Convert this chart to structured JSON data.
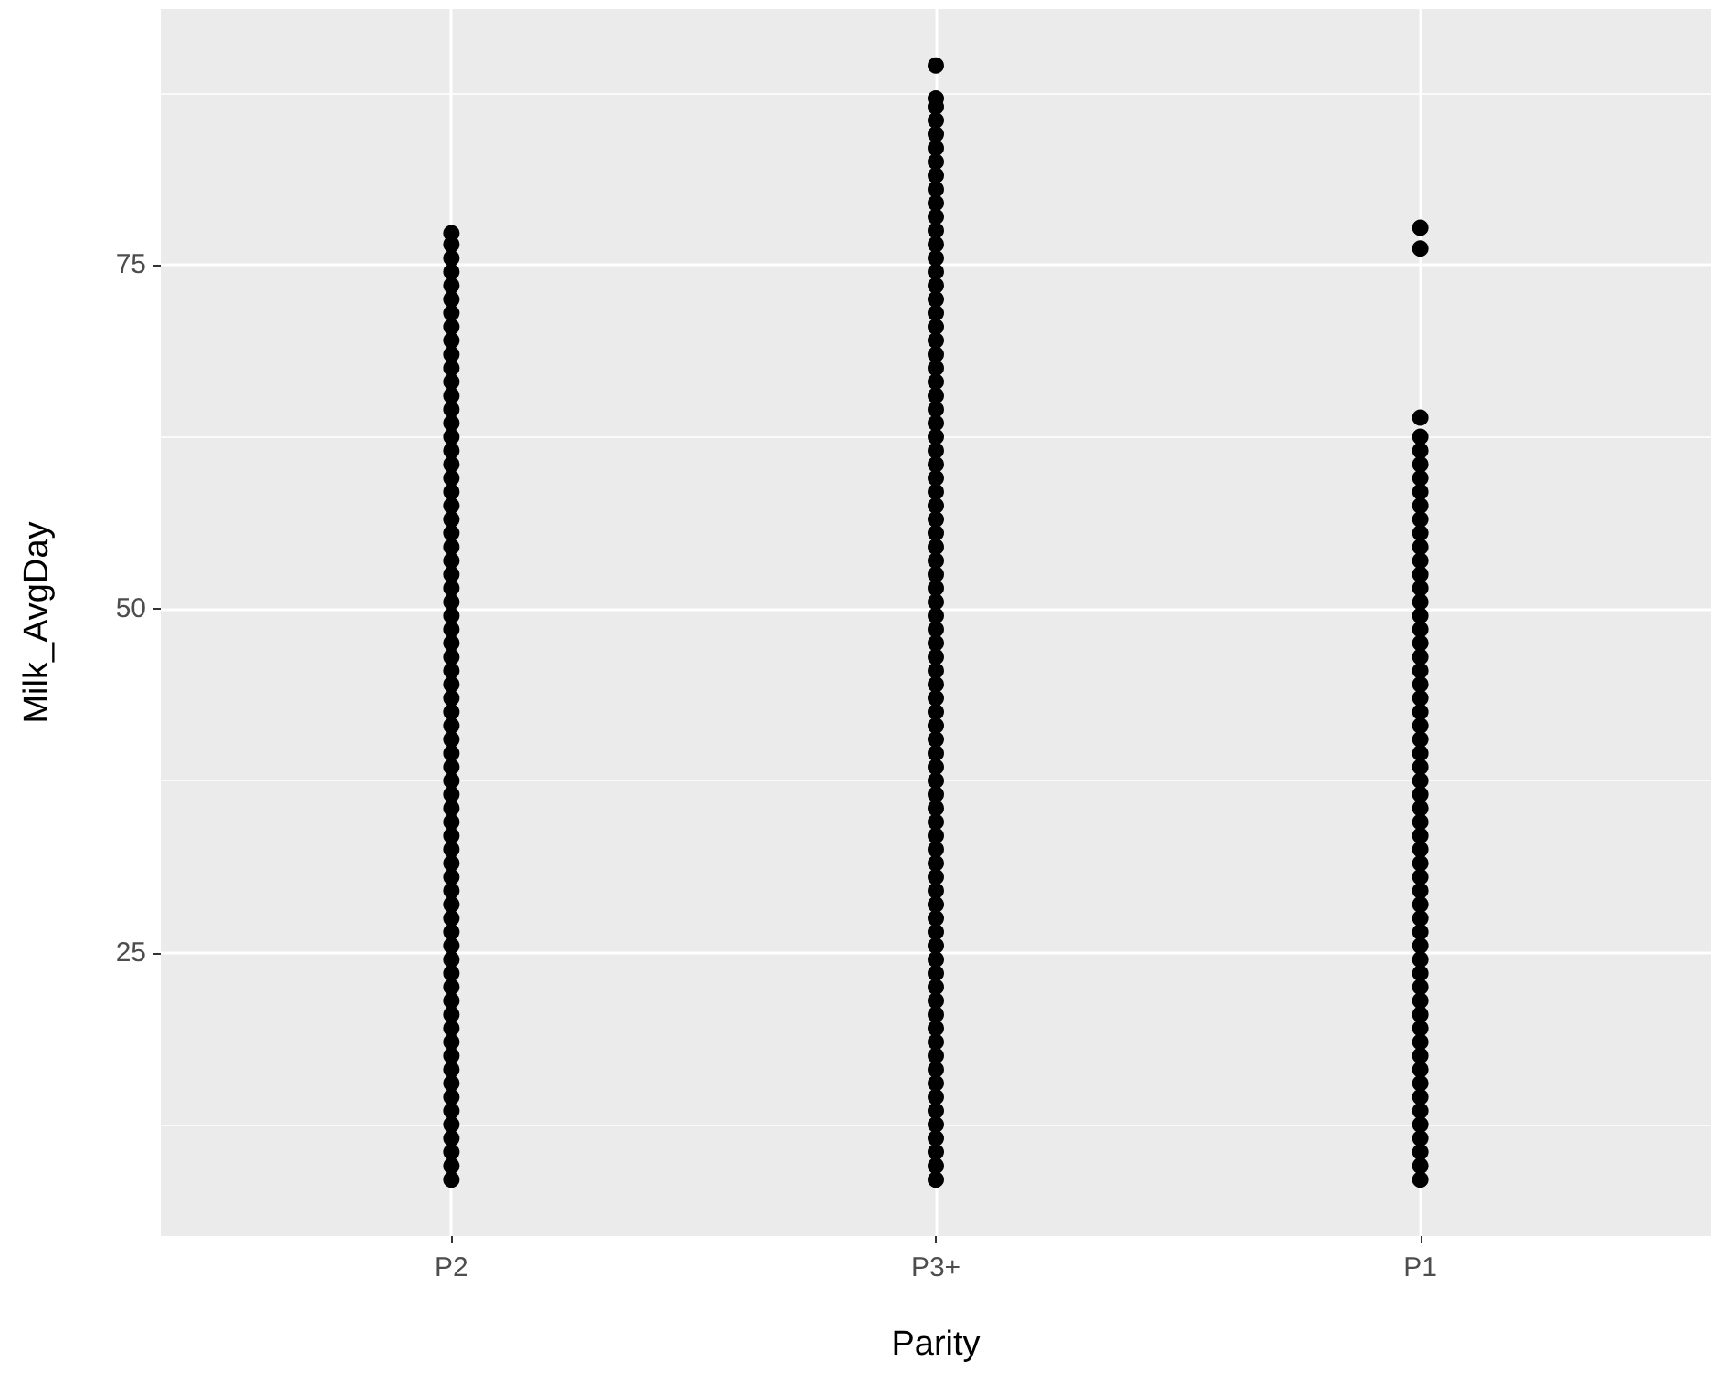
{
  "chart_data": {
    "type": "scatter",
    "xlabel": "Parity",
    "ylabel": "Milk_AvgDay",
    "categories": [
      "P2",
      "P3+",
      "P1"
    ],
    "ylim": [
      4.4,
      93.6
    ],
    "yticks": [
      25,
      50,
      75
    ],
    "grid": true,
    "marker": "circle",
    "series": [
      {
        "color": "#000000",
        "x": [
          "P2",
          "P2",
          "P2",
          "P2",
          "P2",
          "P2",
          "P2",
          "P2",
          "P2",
          "P2",
          "P2",
          "P2",
          "P2",
          "P2",
          "P2",
          "P2",
          "P2",
          "P2",
          "P2",
          "P2",
          "P2",
          "P2",
          "P2",
          "P2",
          "P2",
          "P2",
          "P2",
          "P2",
          "P2",
          "P2",
          "P2",
          "P2",
          "P2",
          "P2",
          "P2",
          "P2",
          "P2",
          "P2",
          "P2",
          "P2",
          "P2",
          "P2",
          "P2",
          "P2",
          "P2",
          "P2",
          "P2",
          "P2",
          "P2",
          "P2",
          "P2",
          "P2",
          "P2",
          "P2",
          "P2",
          "P2",
          "P2",
          "P2",
          "P2",
          "P2",
          "P2",
          "P2",
          "P2",
          "P2",
          "P2",
          "P2",
          "P2",
          "P2",
          "P2",
          "P2"
        ],
        "values": [
          8.5,
          9.5,
          10.5,
          11.5,
          12.5,
          13.5,
          14.5,
          15.5,
          16.5,
          17.5,
          18.5,
          19.5,
          20.5,
          21.5,
          22.5,
          23.5,
          24.5,
          25.5,
          26.5,
          27.5,
          28.5,
          29.5,
          30.5,
          31.5,
          32.5,
          33.5,
          34.5,
          35.5,
          36.5,
          37.5,
          38.5,
          39.5,
          40.5,
          41.5,
          42.5,
          43.5,
          44.5,
          45.5,
          46.5,
          47.5,
          48.5,
          49.5,
          50.5,
          51.5,
          52.5,
          53.5,
          54.5,
          55.5,
          56.5,
          57.5,
          58.5,
          59.5,
          60.5,
          61.5,
          62.5,
          63.5,
          64.5,
          65.5,
          66.5,
          67.5,
          68.5,
          69.5,
          70.5,
          71.5,
          72.5,
          73.5,
          74.5,
          75.5,
          76.5,
          77.3
        ]
      },
      {
        "color": "#000000",
        "x": [
          "P3+",
          "P3+",
          "P3+",
          "P3+",
          "P3+",
          "P3+",
          "P3+",
          "P3+",
          "P3+",
          "P3+",
          "P3+",
          "P3+",
          "P3+",
          "P3+",
          "P3+",
          "P3+",
          "P3+",
          "P3+",
          "P3+",
          "P3+",
          "P3+",
          "P3+",
          "P3+",
          "P3+",
          "P3+",
          "P3+",
          "P3+",
          "P3+",
          "P3+",
          "P3+",
          "P3+",
          "P3+",
          "P3+",
          "P3+",
          "P3+",
          "P3+",
          "P3+",
          "P3+",
          "P3+",
          "P3+",
          "P3+",
          "P3+",
          "P3+",
          "P3+",
          "P3+",
          "P3+",
          "P3+",
          "P3+",
          "P3+",
          "P3+",
          "P3+",
          "P3+",
          "P3+",
          "P3+",
          "P3+",
          "P3+",
          "P3+",
          "P3+",
          "P3+",
          "P3+",
          "P3+",
          "P3+",
          "P3+",
          "P3+",
          "P3+",
          "P3+",
          "P3+",
          "P3+",
          "P3+",
          "P3+",
          "P3+",
          "P3+",
          "P3+",
          "P3+",
          "P3+",
          "P3+",
          "P3+",
          "P3+",
          "P3+",
          "P3+",
          "P3+"
        ],
        "values": [
          8.5,
          9.5,
          10.5,
          11.5,
          12.5,
          13.5,
          14.5,
          15.5,
          16.5,
          17.5,
          18.5,
          19.5,
          20.5,
          21.5,
          22.5,
          23.5,
          24.5,
          25.5,
          26.5,
          27.5,
          28.5,
          29.5,
          30.5,
          31.5,
          32.5,
          33.5,
          34.5,
          35.5,
          36.5,
          37.5,
          38.5,
          39.5,
          40.5,
          41.5,
          42.5,
          43.5,
          44.5,
          45.5,
          46.5,
          47.5,
          48.5,
          49.5,
          50.5,
          51.5,
          52.5,
          53.5,
          54.5,
          55.5,
          56.5,
          57.5,
          58.5,
          59.5,
          60.5,
          61.5,
          62.5,
          63.5,
          64.5,
          65.5,
          66.5,
          67.5,
          68.5,
          69.5,
          70.5,
          71.5,
          72.5,
          73.5,
          74.5,
          75.5,
          76.5,
          77.5,
          78.5,
          79.5,
          80.5,
          81.5,
          82.5,
          83.5,
          84.5,
          85.5,
          86.5,
          87.1,
          89.5
        ]
      },
      {
        "color": "#000000",
        "x": [
          "P1",
          "P1",
          "P1",
          "P1",
          "P1",
          "P1",
          "P1",
          "P1",
          "P1",
          "P1",
          "P1",
          "P1",
          "P1",
          "P1",
          "P1",
          "P1",
          "P1",
          "P1",
          "P1",
          "P1",
          "P1",
          "P1",
          "P1",
          "P1",
          "P1",
          "P1",
          "P1",
          "P1",
          "P1",
          "P1",
          "P1",
          "P1",
          "P1",
          "P1",
          "P1",
          "P1",
          "P1",
          "P1",
          "P1",
          "P1",
          "P1",
          "P1",
          "P1",
          "P1",
          "P1",
          "P1",
          "P1",
          "P1",
          "P1",
          "P1",
          "P1",
          "P1",
          "P1",
          "P1",
          "P1",
          "P1",
          "P1",
          "P1"
        ],
        "values": [
          8.5,
          9.5,
          10.5,
          11.5,
          12.5,
          13.5,
          14.5,
          15.5,
          16.5,
          17.5,
          18.5,
          19.5,
          20.5,
          21.5,
          22.5,
          23.5,
          24.5,
          25.5,
          26.5,
          27.5,
          28.5,
          29.5,
          30.5,
          31.5,
          32.5,
          33.5,
          34.5,
          35.5,
          36.5,
          37.5,
          38.5,
          39.5,
          40.5,
          41.5,
          42.5,
          43.5,
          44.5,
          45.5,
          46.5,
          47.5,
          48.5,
          49.5,
          50.5,
          51.5,
          52.5,
          53.5,
          54.5,
          55.5,
          56.5,
          57.5,
          58.5,
          59.5,
          60.5,
          61.5,
          62.5,
          63.9,
          76.2,
          77.7
        ]
      }
    ]
  }
}
